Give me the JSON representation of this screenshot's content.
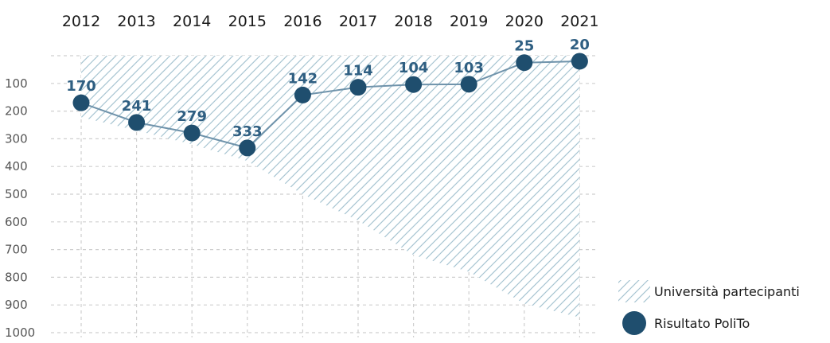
{
  "chart_data": {
    "type": "line",
    "x": [
      "2012",
      "2013",
      "2014",
      "2015",
      "2016",
      "2017",
      "2018",
      "2019",
      "2020",
      "2021"
    ],
    "series": [
      {
        "name": "Università partecipanti",
        "kind": "area",
        "values": [
          222,
          270,
          320,
          380,
          500,
          595,
          720,
          780,
          895,
          945
        ],
        "color": "#9fbfcd"
      },
      {
        "name": "Risultato PoliTo",
        "kind": "line",
        "values": [
          170,
          241,
          279,
          333,
          142,
          114,
          104,
          103,
          25,
          20
        ],
        "color": "#1f4e6e"
      }
    ],
    "y_ticks": [
      "100",
      "200",
      "300",
      "400",
      "500",
      "600",
      "700",
      "800",
      "900",
      "1000"
    ],
    "ylim": [
      0,
      1000
    ],
    "y_inverted": true,
    "grid": true,
    "legend_position": "bottom-right",
    "x_axis_position": "top"
  }
}
